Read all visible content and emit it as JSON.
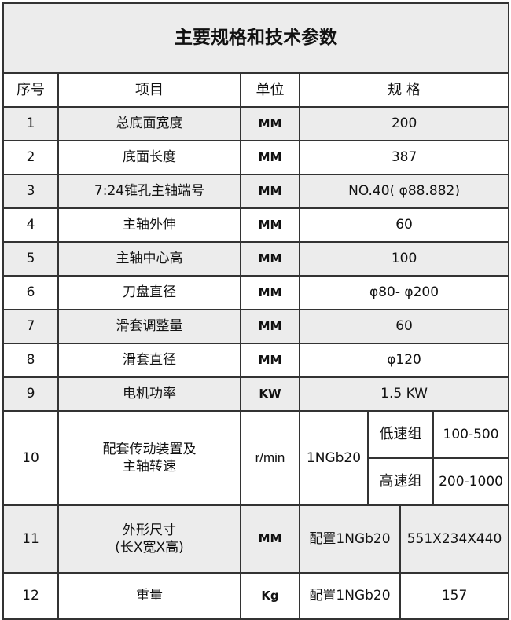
{
  "title": "主要规格和技术参数",
  "headers": {
    "index": "序号",
    "item": "项目",
    "unit": "单位",
    "spec": "规 格"
  },
  "rows": [
    {
      "index": "1",
      "item": "总底面宽度",
      "unit": "MM",
      "spec": "200"
    },
    {
      "index": "2",
      "item": "底面长度",
      "unit": "MM",
      "spec": "387"
    },
    {
      "index": "3",
      "item": "7:24锥孔主轴端号",
      "unit": "MM",
      "spec": "NO.40( φ88.882)"
    },
    {
      "index": "4",
      "item": "主轴外伸",
      "unit": "MM",
      "spec": "60"
    },
    {
      "index": "5",
      "item": "主轴中心高",
      "unit": "MM",
      "spec": "100"
    },
    {
      "index": "6",
      "item": "刀盘直径",
      "unit": "MM",
      "spec": "φ80- φ200"
    },
    {
      "index": "7",
      "item": "滑套调整量",
      "unit": "MM",
      "spec": "60"
    },
    {
      "index": "8",
      "item": "滑套直径",
      "unit": "MM",
      "spec": "φ120"
    },
    {
      "index": "9",
      "item": "电机功率",
      "unit": "KW",
      "spec": "1.5 KW"
    }
  ],
  "row10": {
    "index": "10",
    "item_line1": "配套传动装置及",
    "item_line2": "主轴转速",
    "unit": "r/min",
    "model": "1NGb20",
    "low_label": "低速组",
    "low_value": "100-500",
    "high_label": "高速组",
    "high_value": "200-1000"
  },
  "row11": {
    "index": "11",
    "item_line1": "外形尺寸",
    "item_line2": "(长X宽X高)",
    "unit": "MM",
    "config": "配置1NGb20",
    "value": "551X234X440"
  },
  "row12": {
    "index": "12",
    "item": "重量",
    "unit": "Kg",
    "config": "配置1NGb20",
    "value": "157"
  }
}
